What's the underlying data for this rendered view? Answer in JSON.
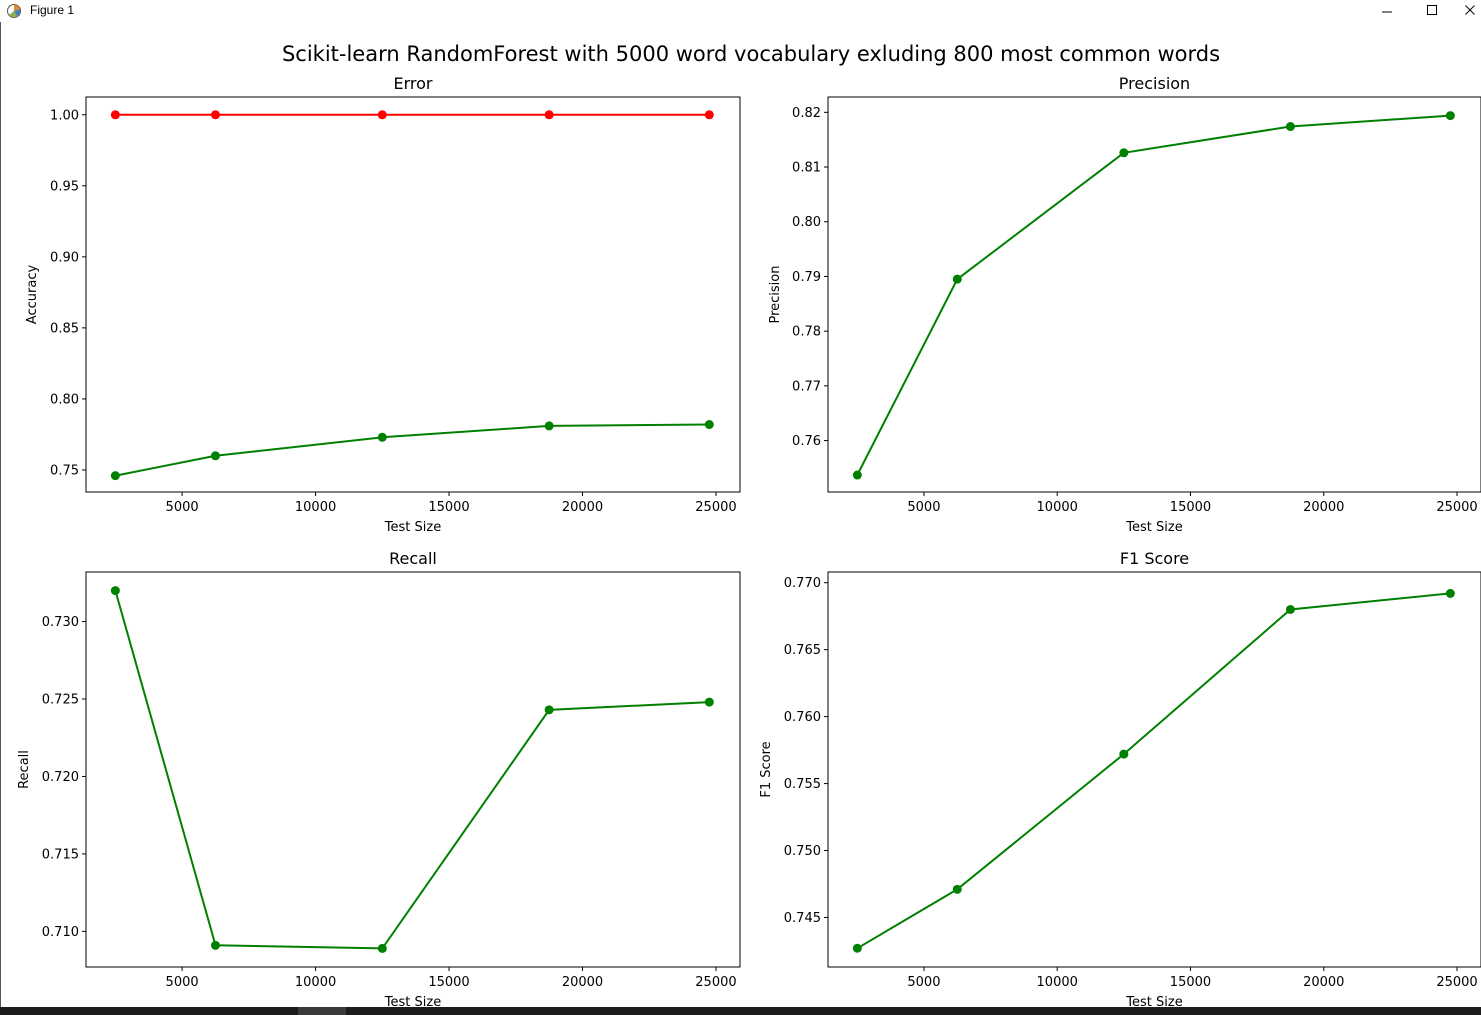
{
  "window": {
    "title": "Figure 1",
    "controls": {
      "minimize": "minimize-icon",
      "maximize": "maximize-icon",
      "close": "close-icon"
    }
  },
  "figure_title": "Scikit-learn RandomForest with 5000 word vocabulary exluding 800 most common words",
  "colors": {
    "green": "#008000",
    "red": "#ff0000",
    "axes": "#000000",
    "background": "#ffffff"
  },
  "chart_data": [
    {
      "type": "line",
      "title": "Error",
      "xlabel": "Test Size",
      "ylabel": "Accuracy",
      "xlim": [
        1400,
        25900
      ],
      "ylim": [
        0.7345,
        1.0125
      ],
      "xticks": [
        5000,
        10000,
        15000,
        20000,
        25000
      ],
      "xtick_labels": [
        "5000",
        "10000",
        "15000",
        "20000",
        "25000"
      ],
      "yticks": [
        0.75,
        0.8,
        0.85,
        0.9,
        0.95,
        1.0
      ],
      "ytick_labels": [
        "0.75",
        "0.80",
        "0.85",
        "0.90",
        "0.95",
        "1.00"
      ],
      "x": [
        2500,
        6250,
        12500,
        18750,
        24750
      ],
      "series": [
        {
          "color": "#ff0000",
          "values": [
            1.0,
            1.0,
            1.0,
            1.0,
            1.0
          ]
        },
        {
          "color": "#008000",
          "values": [
            0.746,
            0.76,
            0.773,
            0.781,
            0.782
          ]
        }
      ],
      "grid": false
    },
    {
      "type": "line",
      "title": "Precision",
      "xlabel": "Test Size",
      "ylabel": "Precision",
      "xlim": [
        1400,
        25900
      ],
      "ylim": [
        0.7506,
        0.8228
      ],
      "xticks": [
        5000,
        10000,
        15000,
        20000,
        25000
      ],
      "xtick_labels": [
        "5000",
        "10000",
        "15000",
        "20000",
        "25000"
      ],
      "yticks": [
        0.76,
        0.77,
        0.78,
        0.79,
        0.8,
        0.81,
        0.82
      ],
      "ytick_labels": [
        "0.76",
        "0.77",
        "0.78",
        "0.79",
        "0.80",
        "0.81",
        "0.82"
      ],
      "x": [
        2500,
        6250,
        12500,
        18750,
        24750
      ],
      "series": [
        {
          "color": "#008000",
          "values": [
            0.7537,
            0.7895,
            0.8126,
            0.8174,
            0.8194
          ]
        }
      ],
      "grid": false
    },
    {
      "type": "line",
      "title": "Recall",
      "xlabel": "Test Size",
      "ylabel": "Recall",
      "xlim": [
        1400,
        25900
      ],
      "ylim": [
        0.7077,
        0.7332
      ],
      "xticks": [
        5000,
        10000,
        15000,
        20000,
        25000
      ],
      "xtick_labels": [
        "5000",
        "10000",
        "15000",
        "20000",
        "25000"
      ],
      "yticks": [
        0.71,
        0.715,
        0.72,
        0.725,
        0.73
      ],
      "ytick_labels": [
        "0.710",
        "0.715",
        "0.720",
        "0.725",
        "0.730"
      ],
      "x": [
        2500,
        6250,
        12500,
        18750,
        24750
      ],
      "series": [
        {
          "color": "#008000",
          "values": [
            0.732,
            0.7091,
            0.7089,
            0.7243,
            0.7248
          ]
        }
      ],
      "grid": false
    },
    {
      "type": "line",
      "title": "F1 Score",
      "xlabel": "Test Size",
      "ylabel": "F1 Score",
      "xlim": [
        1400,
        25900
      ],
      "ylim": [
        0.7413,
        0.7708
      ],
      "xticks": [
        5000,
        10000,
        15000,
        20000,
        25000
      ],
      "xtick_labels": [
        "5000",
        "10000",
        "15000",
        "20000",
        "25000"
      ],
      "yticks": [
        0.745,
        0.75,
        0.755,
        0.76,
        0.765,
        0.77
      ],
      "ytick_labels": [
        "0.745",
        "0.750",
        "0.755",
        "0.760",
        "0.765",
        "0.770"
      ],
      "x": [
        2500,
        6250,
        12500,
        18750,
        24750
      ],
      "series": [
        {
          "color": "#008000",
          "values": [
            0.7427,
            0.7471,
            0.7572,
            0.768,
            0.7692
          ]
        }
      ],
      "grid": false
    }
  ]
}
